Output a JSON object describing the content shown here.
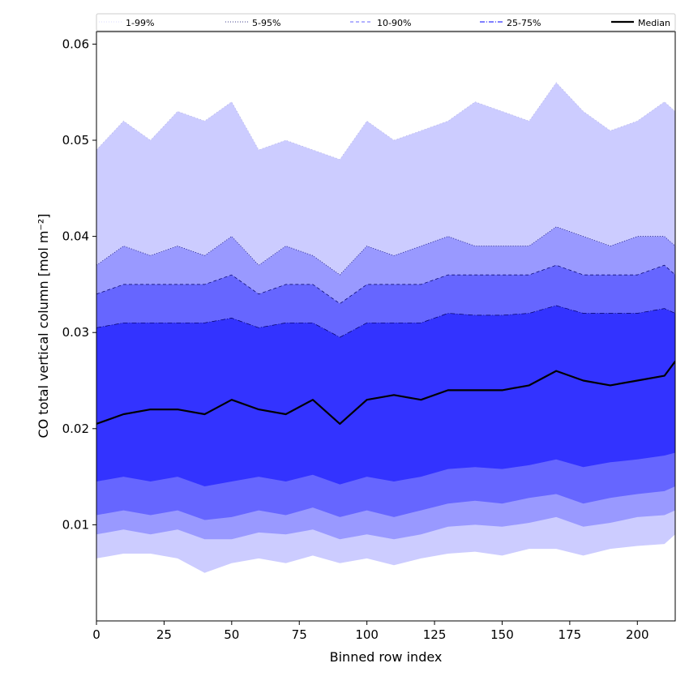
{
  "chart_data": {
    "type": "area",
    "title": "",
    "xlabel": "Binned row index",
    "ylabel": "CO total vertical column [mol m⁻²]",
    "xlim": [
      0,
      214
    ],
    "ylim": [
      0.0,
      0.0613
    ],
    "x_ticks": [
      0,
      25,
      50,
      75,
      100,
      125,
      150,
      175,
      200
    ],
    "y_ticks": [
      0.01,
      0.02,
      0.03,
      0.04,
      0.05,
      0.06
    ],
    "y_tick_labels": [
      "0.01",
      "0.02",
      "0.03",
      "0.04",
      "0.05",
      "0.06"
    ],
    "grid": false,
    "legend_position": "top",
    "x": [
      0,
      10,
      20,
      30,
      40,
      50,
      60,
      70,
      80,
      90,
      100,
      110,
      120,
      130,
      140,
      150,
      160,
      170,
      180,
      190,
      200,
      210,
      214
    ],
    "bands": [
      {
        "name": "1-99%",
        "color": "#ccccff",
        "lower": [
          0.0065,
          0.007,
          0.007,
          0.0065,
          0.005,
          0.006,
          0.0065,
          0.006,
          0.0068,
          0.006,
          0.0065,
          0.0058,
          0.0065,
          0.007,
          0.0072,
          0.0068,
          0.0075,
          0.0075,
          0.0068,
          0.0075,
          0.0078,
          0.008,
          0.009
        ],
        "upper": [
          0.049,
          0.052,
          0.05,
          0.053,
          0.052,
          0.054,
          0.049,
          0.05,
          0.049,
          0.048,
          0.052,
          0.05,
          0.051,
          0.052,
          0.054,
          0.053,
          0.052,
          0.056,
          0.053,
          0.051,
          0.052,
          0.054,
          0.053
        ]
      },
      {
        "name": "5-95%",
        "color": "#9999ff",
        "lower": [
          0.009,
          0.0095,
          0.009,
          0.0095,
          0.0085,
          0.0085,
          0.0092,
          0.009,
          0.0095,
          0.0085,
          0.009,
          0.0085,
          0.009,
          0.0098,
          0.01,
          0.0098,
          0.0102,
          0.0108,
          0.0098,
          0.0102,
          0.0108,
          0.011,
          0.0115
        ],
        "upper": [
          0.037,
          0.039,
          0.038,
          0.039,
          0.038,
          0.04,
          0.037,
          0.039,
          0.038,
          0.036,
          0.039,
          0.038,
          0.039,
          0.04,
          0.039,
          0.039,
          0.039,
          0.041,
          0.04,
          0.039,
          0.04,
          0.04,
          0.039
        ]
      },
      {
        "name": "10-90%",
        "color": "#6666ff",
        "lower": [
          0.011,
          0.0115,
          0.011,
          0.0115,
          0.0105,
          0.0108,
          0.0115,
          0.011,
          0.0118,
          0.0108,
          0.0115,
          0.0108,
          0.0115,
          0.0122,
          0.0125,
          0.0122,
          0.0128,
          0.0132,
          0.0122,
          0.0128,
          0.0132,
          0.0135,
          0.014
        ],
        "upper": [
          0.034,
          0.035,
          0.035,
          0.035,
          0.035,
          0.036,
          0.034,
          0.035,
          0.035,
          0.033,
          0.035,
          0.035,
          0.035,
          0.036,
          0.036,
          0.036,
          0.036,
          0.037,
          0.036,
          0.036,
          0.036,
          0.037,
          0.036
        ]
      },
      {
        "name": "25-75%",
        "color": "#3333ff",
        "lower": [
          0.0145,
          0.015,
          0.0145,
          0.015,
          0.014,
          0.0145,
          0.015,
          0.0145,
          0.0152,
          0.0142,
          0.015,
          0.0145,
          0.015,
          0.0158,
          0.016,
          0.0158,
          0.0162,
          0.0168,
          0.016,
          0.0165,
          0.0168,
          0.0172,
          0.0175
        ],
        "upper": [
          0.0305,
          0.031,
          0.031,
          0.031,
          0.031,
          0.0315,
          0.0305,
          0.031,
          0.031,
          0.0295,
          0.031,
          0.031,
          0.031,
          0.032,
          0.0318,
          0.0318,
          0.032,
          0.0328,
          0.032,
          0.032,
          0.032,
          0.0325,
          0.032
        ]
      }
    ],
    "series": [
      {
        "name": "Median",
        "color": "#000000",
        "values": [
          0.0205,
          0.0215,
          0.022,
          0.022,
          0.0215,
          0.023,
          0.022,
          0.0215,
          0.023,
          0.0205,
          0.023,
          0.0235,
          0.023,
          0.024,
          0.024,
          0.024,
          0.0245,
          0.026,
          0.025,
          0.0245,
          0.025,
          0.0255,
          0.027
        ]
      }
    ],
    "legend": [
      {
        "label": "1-99%",
        "style": "dotted-faint"
      },
      {
        "label": "5-95%",
        "style": "dotted"
      },
      {
        "label": "10-90%",
        "style": "dashed"
      },
      {
        "label": "25-75%",
        "style": "dashdot"
      },
      {
        "label": "Median",
        "style": "solid"
      }
    ]
  }
}
